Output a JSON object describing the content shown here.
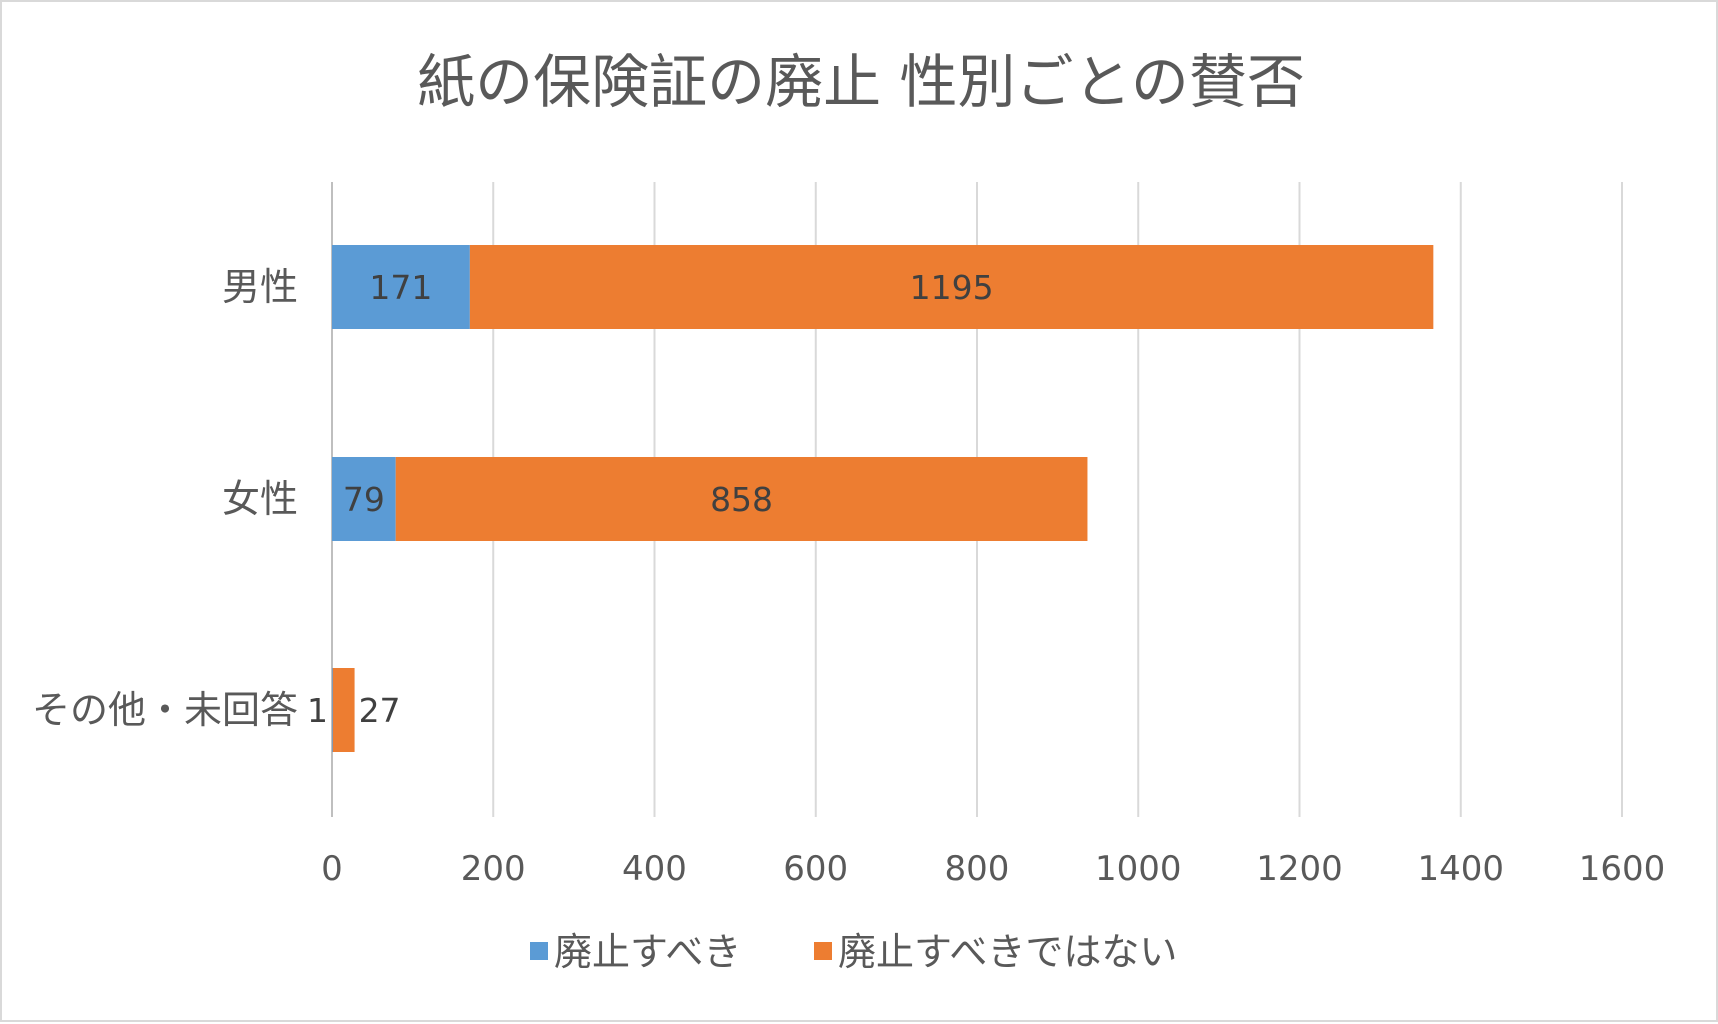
{
  "chart_data": {
    "type": "bar",
    "orientation": "horizontal",
    "stacked": true,
    "title": "紙の保険証の廃止 性別ごとの賛否",
    "categories": [
      "男性",
      "女性",
      "その他・未回答"
    ],
    "series": [
      {
        "name": "廃止すべき",
        "color": "#5b9bd5",
        "values": [
          171,
          79,
          1
        ]
      },
      {
        "name": "廃止すべきではない",
        "color": "#ed7d31",
        "values": [
          1195,
          858,
          27
        ]
      }
    ],
    "xlim": [
      0,
      1600
    ],
    "xticks": [
      "0",
      "200",
      "400",
      "600",
      "800",
      "1000",
      "1200",
      "1400",
      "1600"
    ],
    "grid": true,
    "legend_position": "bottom"
  }
}
